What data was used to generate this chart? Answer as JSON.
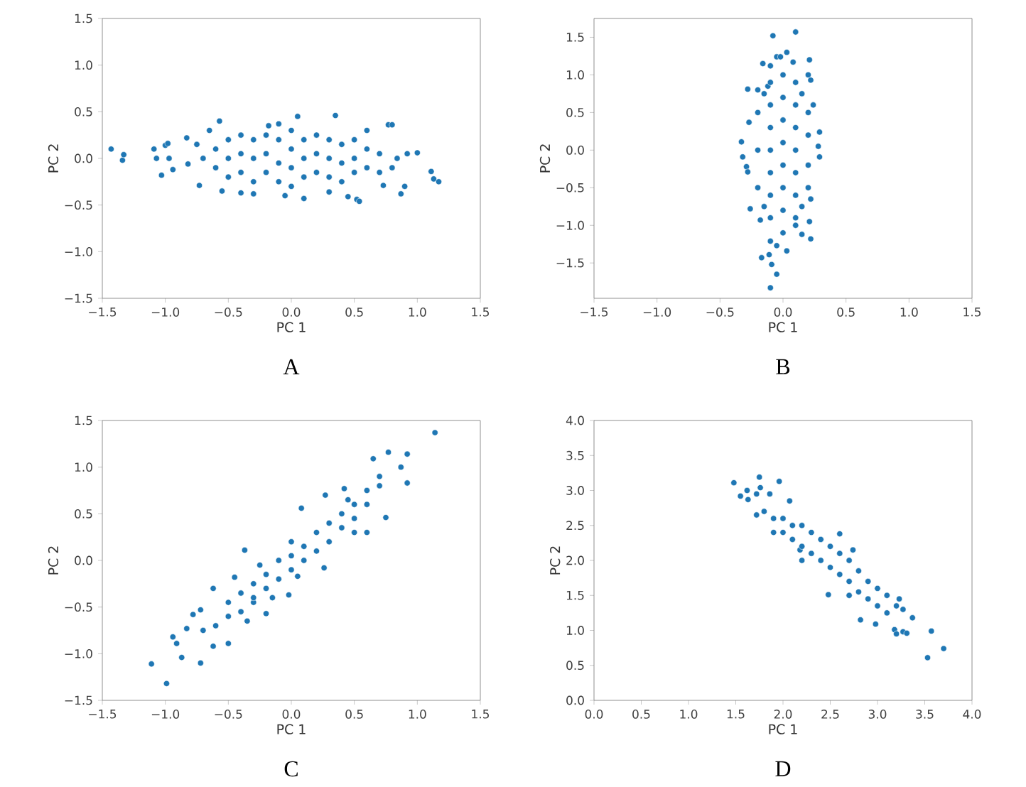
{
  "chart_data": [
    {
      "type": "scatter",
      "xlabel": "PC 1",
      "ylabel": "PC 2",
      "annotations": [
        "A"
      ],
      "marker": "circle",
      "xlim": [
        -1.5,
        1.5
      ],
      "ylim": [
        -1.5,
        1.5
      ],
      "xticks": [
        {
          "value": -1.5,
          "label": "−1.5"
        },
        {
          "value": -1.0,
          "label": "−1.0"
        },
        {
          "value": -0.5,
          "label": "−0.5"
        },
        {
          "value": 0,
          "label": "0.0"
        },
        {
          "value": 0.5,
          "label": "0.5"
        },
        {
          "value": 1.0,
          "label": "1.0"
        },
        {
          "value": 1.5,
          "label": "1.5"
        }
      ],
      "yticks": [
        {
          "value": -1.5,
          "label": "−1.5"
        },
        {
          "value": -1.0,
          "label": "−1.0"
        },
        {
          "value": -0.5,
          "label": "−0.5"
        },
        {
          "value": 0,
          "label": "0.0"
        },
        {
          "value": 0.5,
          "label": "0.5"
        },
        {
          "value": 1.0,
          "label": "1.0"
        },
        {
          "value": 1.5,
          "label": "1.5"
        }
      ],
      "series": [
        {
          "color": "#1f77b4",
          "x": [
            -1.43,
            -1.34,
            -1.33,
            -1.09,
            -1.07,
            -1.03,
            -1.0,
            -0.98,
            -0.94,
            -0.97,
            -0.83,
            -0.82,
            -0.73,
            -0.65,
            -0.57,
            -0.55,
            -0.4,
            -0.3,
            -0.18,
            -0.1,
            -0.05,
            0.05,
            0.1,
            0.35,
            0.3,
            0.45,
            0.52,
            0.54,
            0.6,
            0.73,
            0.77,
            0.8,
            0.84,
            0.87,
            0.9,
            0.92,
            1.0,
            1.11,
            1.13,
            1.17,
            -0.6,
            -0.6,
            -0.5,
            -0.5,
            -0.5,
            -0.4,
            -0.4,
            -0.4,
            -0.3,
            -0.3,
            -0.3,
            -0.2,
            -0.2,
            -0.2,
            -0.1,
            -0.1,
            -0.1,
            0,
            0,
            0,
            0,
            0.1,
            0.1,
            0.1,
            0.2,
            0.2,
            0.2,
            0.3,
            0.3,
            0.3,
            0.4,
            0.4,
            0.4,
            0.5,
            0.5,
            0.5,
            0.6,
            0.6,
            0.7,
            0.7,
            -0.7,
            -0.75,
            0.8
          ],
          "values": [
            0.1,
            -0.02,
            0.04,
            0.1,
            0.0,
            -0.18,
            0.14,
            0.16,
            -0.12,
            0.0,
            0.22,
            -0.06,
            -0.29,
            0.3,
            0.4,
            -0.35,
            -0.37,
            -0.38,
            0.35,
            0.37,
            -0.4,
            0.45,
            -0.43,
            0.46,
            -0.36,
            -0.41,
            -0.44,
            -0.46,
            0.3,
            -0.29,
            0.36,
            0.36,
            0.0,
            -0.38,
            -0.3,
            0.05,
            0.06,
            -0.14,
            -0.22,
            -0.25,
            0.1,
            -0.1,
            0.2,
            0,
            -0.2,
            0.25,
            0.05,
            -0.15,
            0.2,
            0,
            -0.25,
            0.25,
            0.05,
            -0.15,
            0.2,
            -0.05,
            -0.25,
            0.3,
            0.1,
            -0.1,
            -0.3,
            0.2,
            0,
            -0.2,
            0.25,
            0.05,
            -0.15,
            0.2,
            0,
            -0.2,
            0.15,
            -0.05,
            -0.25,
            0.2,
            0,
            -0.15,
            0.1,
            -0.1,
            0.05,
            -0.15,
            0,
            0.15,
            -0.1
          ]
        }
      ]
    },
    {
      "type": "scatter",
      "xlabel": "PC 1",
      "ylabel": "PC 2",
      "annotations": [
        "B"
      ],
      "marker": "circle",
      "xlim": [
        -1.5,
        1.5
      ],
      "ylim": [
        -1.97,
        1.75
      ],
      "xticks": [
        {
          "value": -1.5,
          "label": "−1.5"
        },
        {
          "value": -1.0,
          "label": "−1.0"
        },
        {
          "value": -0.5,
          "label": "−0.5"
        },
        {
          "value": 0,
          "label": "0.0"
        },
        {
          "value": 0.5,
          "label": "0.5"
        },
        {
          "value": 1.0,
          "label": "1.0"
        },
        {
          "value": 1.5,
          "label": "1.5"
        }
      ],
      "yticks": [
        {
          "value": -1.5,
          "label": "−1.5"
        },
        {
          "value": -1.0,
          "label": "−1.0"
        },
        {
          "value": -0.5,
          "label": "−0.5"
        },
        {
          "value": 0,
          "label": "0.0"
        },
        {
          "value": 0.5,
          "label": "0.5"
        },
        {
          "value": 1.0,
          "label": "1.0"
        },
        {
          "value": 1.5,
          "label": "1.5"
        }
      ],
      "series": [
        {
          "color": "#1f77b4",
          "x": [
            0.1,
            -0.08,
            0.03,
            -0.05,
            -0.02,
            -0.16,
            -0.1,
            0.08,
            0.21,
            0.2,
            -0.28,
            -0.2,
            -0.12,
            0.22,
            -0.27,
            -0.33,
            -0.32,
            -0.29,
            -0.28,
            -0.26,
            0.29,
            0.28,
            0.29,
            0.24,
            0.22,
            0.21,
            0.15,
            0.22,
            0.03,
            -0.1,
            -0.05,
            -0.17,
            -0.11,
            -0.09,
            -0.05,
            -0.1,
            -0.18,
            0.1,
            -0.2,
            -0.2,
            -0.2,
            -0.1,
            -0.1,
            -0.1,
            -0.1,
            -0.1,
            -0.1,
            -0.1,
            0,
            0,
            0,
            0,
            0,
            0,
            0,
            0,
            0.1,
            0.1,
            0.1,
            0.1,
            0.1,
            0.1,
            0.1,
            0.2,
            0.2,
            0.2,
            0.2,
            -0.15,
            0.15,
            -0.15,
            0.15
          ],
          "values": [
            1.57,
            1.52,
            1.3,
            1.24,
            1.24,
            1.15,
            1.12,
            1.17,
            1.2,
            1.0,
            0.81,
            0.8,
            0.85,
            0.93,
            0.37,
            0.11,
            -0.09,
            -0.22,
            -0.29,
            -0.78,
            0.24,
            0.05,
            -0.09,
            0.6,
            -0.65,
            -0.95,
            -1.12,
            -1.18,
            -1.34,
            -1.21,
            -1.27,
            -1.43,
            -1.39,
            -1.52,
            -1.65,
            -1.83,
            -0.93,
            -1.0,
            0.5,
            0,
            -0.5,
            0.9,
            0.6,
            0.3,
            0,
            -0.3,
            -0.6,
            -0.9,
            1.0,
            0.7,
            0.4,
            0.1,
            -0.2,
            -0.5,
            -0.8,
            -1.1,
            0.9,
            0.6,
            0.3,
            0,
            -0.3,
            -0.6,
            -0.9,
            0.5,
            0.2,
            -0.2,
            -0.5,
            0.75,
            0.75,
            -0.75,
            -0.75
          ]
        }
      ]
    },
    {
      "type": "scatter",
      "xlabel": "PC 1",
      "ylabel": "PC 2",
      "annotations": [
        "C"
      ],
      "marker": "circle",
      "xlim": [
        -1.5,
        1.5
      ],
      "ylim": [
        -1.5,
        1.5
      ],
      "xticks": [
        {
          "value": -1.5,
          "label": "−1.5"
        },
        {
          "value": -1.0,
          "label": "−1.0"
        },
        {
          "value": -0.5,
          "label": "−0.5"
        },
        {
          "value": 0,
          "label": "0.0"
        },
        {
          "value": 0.5,
          "label": "0.5"
        },
        {
          "value": 1.0,
          "label": "1.0"
        },
        {
          "value": 1.5,
          "label": "1.5"
        }
      ],
      "yticks": [
        {
          "value": -1.5,
          "label": "−1.5"
        },
        {
          "value": -1.0,
          "label": "−1.0"
        },
        {
          "value": -0.5,
          "label": "−0.5"
        },
        {
          "value": 0,
          "label": "0.0"
        },
        {
          "value": 0.5,
          "label": "0.5"
        },
        {
          "value": 1.0,
          "label": "1.0"
        },
        {
          "value": 1.5,
          "label": "1.5"
        }
      ],
      "series": [
        {
          "color": "#1f77b4",
          "x": [
            1.14,
            -1.11,
            -0.99,
            -0.72,
            -0.94,
            -0.91,
            -0.87,
            -0.83,
            -0.78,
            -0.72,
            -0.62,
            -0.62,
            -0.5,
            -0.45,
            -0.37,
            0.08,
            0.27,
            0.42,
            0.65,
            0.77,
            0.92,
            0.87,
            0.92,
            0.75,
            0.6,
            0.7,
            0.5,
            0.26,
            0.05,
            -0.02,
            -0.15,
            -0.3,
            -0.2,
            -0.35,
            -0.6,
            -0.5,
            -0.5,
            -0.4,
            -0.4,
            -0.3,
            -0.3,
            -0.2,
            -0.2,
            -0.1,
            -0.1,
            0,
            0,
            0,
            0.1,
            0.1,
            0.2,
            0.2,
            0.3,
            0.3,
            0.4,
            0.4,
            0.5,
            0.5,
            0.6,
            0.6,
            0.7,
            -0.7,
            0.45,
            -0.25
          ],
          "values": [
            1.37,
            -1.11,
            -1.32,
            -1.1,
            -0.82,
            -0.89,
            -1.04,
            -0.73,
            -0.58,
            -0.53,
            -0.92,
            -0.3,
            -0.89,
            -0.18,
            0.11,
            0.56,
            0.7,
            0.77,
            1.09,
            1.16,
            1.14,
            1.0,
            0.83,
            0.46,
            0.3,
            0.9,
            0.3,
            -0.08,
            -0.17,
            -0.37,
            -0.4,
            -0.45,
            -0.57,
            -0.65,
            -0.7,
            -0.6,
            -0.45,
            -0.55,
            -0.35,
            -0.4,
            -0.25,
            -0.3,
            -0.15,
            -0.2,
            0,
            -0.1,
            0.05,
            0.2,
            0,
            0.15,
            0.1,
            0.3,
            0.2,
            0.4,
            0.35,
            0.5,
            0.45,
            0.6,
            0.6,
            0.75,
            0.8,
            -0.75,
            0.65,
            -0.05
          ]
        }
      ]
    },
    {
      "type": "scatter",
      "xlabel": "PC 1",
      "ylabel": "PC 2",
      "annotations": [
        "D"
      ],
      "marker": "circle",
      "xlim": [
        0,
        4
      ],
      "ylim": [
        0,
        4
      ],
      "xticks": [
        {
          "value": 0,
          "label": "0.0"
        },
        {
          "value": 0.5,
          "label": "0.5"
        },
        {
          "value": 1.0,
          "label": "1.0"
        },
        {
          "value": 1.5,
          "label": "1.5"
        },
        {
          "value": 2.0,
          "label": "2.0"
        },
        {
          "value": 2.5,
          "label": "2.5"
        },
        {
          "value": 3.0,
          "label": "3.0"
        },
        {
          "value": 3.5,
          "label": "3.5"
        },
        {
          "value": 4.0,
          "label": "4.0"
        }
      ],
      "yticks": [
        {
          "value": 0,
          "label": "0.0"
        },
        {
          "value": 0.5,
          "label": "0.5"
        },
        {
          "value": 1.0,
          "label": "1.0"
        },
        {
          "value": 1.5,
          "label": "1.5"
        },
        {
          "value": 2.0,
          "label": "2.0"
        },
        {
          "value": 2.5,
          "label": "2.5"
        },
        {
          "value": 3.0,
          "label": "3.0"
        },
        {
          "value": 3.5,
          "label": "3.5"
        },
        {
          "value": 4.0,
          "label": "4.0"
        }
      ],
      "series": [
        {
          "color": "#1f77b4",
          "x": [
            1.48,
            1.55,
            1.62,
            1.63,
            1.75,
            1.76,
            1.96,
            1.72,
            1.86,
            1.72,
            2.07,
            2.18,
            2.48,
            2.82,
            2.98,
            3.18,
            3.2,
            3.27,
            3.31,
            3.37,
            3.53,
            3.57,
            3.7,
            2.6,
            2.74,
            3.27,
            3.23,
            1.8,
            1.9,
            1.9,
            2.0,
            2.0,
            2.1,
            2.1,
            2.2,
            2.2,
            2.3,
            2.3,
            2.4,
            2.4,
            2.5,
            2.5,
            2.6,
            2.6,
            2.7,
            2.7,
            2.8,
            2.8,
            2.9,
            2.9,
            3.0,
            3.0,
            3.1,
            3.1,
            3.2,
            2.2,
            2.7
          ],
          "values": [
            3.11,
            2.92,
            3.0,
            2.87,
            3.19,
            3.04,
            3.13,
            2.95,
            2.95,
            2.65,
            2.85,
            2.15,
            1.51,
            1.15,
            1.09,
            1.01,
            0.95,
            0.98,
            0.96,
            1.18,
            0.61,
            0.99,
            0.74,
            2.38,
            2.15,
            1.3,
            1.45,
            2.7,
            2.6,
            2.4,
            2.6,
            2.4,
            2.5,
            2.3,
            2.5,
            2.2,
            2.4,
            2.1,
            2.3,
            2.0,
            2.2,
            1.9,
            2.1,
            1.8,
            2.0,
            1.7,
            1.85,
            1.55,
            1.7,
            1.45,
            1.6,
            1.35,
            1.5,
            1.25,
            1.35,
            2.0,
            1.5
          ]
        }
      ]
    }
  ]
}
